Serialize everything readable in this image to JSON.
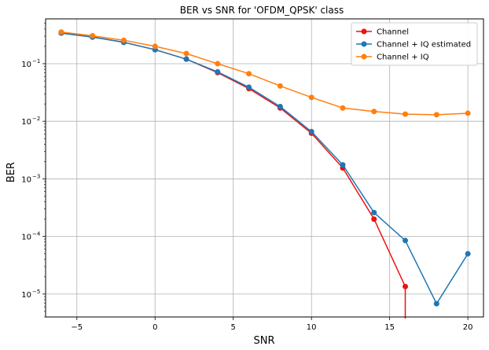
{
  "chart_data": {
    "type": "line",
    "title": "BER vs SNR for 'OFDM_QPSK' class",
    "xlabel": "SNR",
    "ylabel": "BER",
    "xlim": [
      -7,
      21
    ],
    "ylim": [
      4e-06,
      0.6
    ],
    "yscale": "log",
    "grid": true,
    "legend_position": "top-right",
    "x_ticks": [
      -5,
      0,
      5,
      10,
      15,
      20
    ],
    "x_tick_labels": [
      "−5",
      "0",
      "5",
      "10",
      "15",
      "20"
    ],
    "y_ticks": [
      1e-05,
      0.0001,
      0.001,
      0.01,
      0.1
    ],
    "y_tick_labels": [
      {
        "base": "10",
        "exp": "−5"
      },
      {
        "base": "10",
        "exp": "−4"
      },
      {
        "base": "10",
        "exp": "−3"
      },
      {
        "base": "10",
        "exp": "−2"
      },
      {
        "base": "10",
        "exp": "−1"
      }
    ],
    "series": [
      {
        "name": "Channel",
        "color": "#ee1111",
        "x": [
          -6,
          -4,
          -2,
          0,
          2,
          4,
          6,
          8,
          10,
          12,
          14,
          16
        ],
        "y": [
          0.34,
          0.29,
          0.235,
          0.175,
          0.12,
          0.07,
          0.037,
          0.017,
          0.0062,
          0.00155,
          0.0002,
          1.35e-05
        ],
        "drop_to_zero_after_x": 16
      },
      {
        "name": "Channel + IQ estimated",
        "color": "#1f77b4",
        "x": [
          -6,
          -4,
          -2,
          0,
          2,
          4,
          6,
          8,
          10,
          12,
          14,
          16,
          18,
          20
        ],
        "y": [
          0.34,
          0.29,
          0.235,
          0.175,
          0.12,
          0.072,
          0.039,
          0.018,
          0.0066,
          0.00175,
          0.00026,
          8.5e-05,
          6.8e-06,
          5e-05
        ]
      },
      {
        "name": "Channel + IQ",
        "color": "#ff7f0e",
        "x": [
          -6,
          -4,
          -2,
          0,
          2,
          4,
          6,
          8,
          10,
          12,
          14,
          16,
          18,
          20
        ],
        "y": [
          0.355,
          0.305,
          0.255,
          0.2,
          0.15,
          0.1,
          0.067,
          0.041,
          0.026,
          0.017,
          0.0148,
          0.0133,
          0.013,
          0.0138
        ]
      }
    ]
  }
}
